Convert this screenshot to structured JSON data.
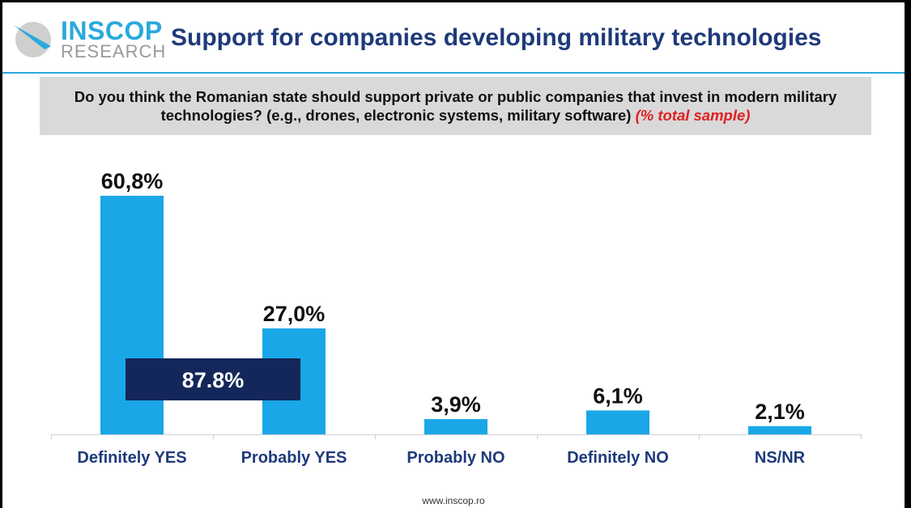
{
  "header": {
    "logo_name": "INSCOP",
    "logo_sub": "RESEARCH",
    "title": "Support for companies developing military technologies"
  },
  "question": {
    "text": "Do you think the Romanian state should support private or public companies that invest in modern military technologies? (e.g., drones, electronic systems, military software)",
    "note": "(% total sample)"
  },
  "chart_data": {
    "type": "bar",
    "categories": [
      "Definitely YES",
      "Probably YES",
      "Probably NO",
      "Definitely NO",
      "NS/NR"
    ],
    "values": [
      60.8,
      27.0,
      3.9,
      6.1,
      2.1
    ],
    "value_labels": [
      "60,8%",
      "27,0%",
      "3,9%",
      "6,1%",
      "2,1%"
    ],
    "annotation": "87.8%",
    "ylim": [
      0,
      60.8
    ],
    "colors": {
      "bar": "#1aa7e8",
      "annotation_bg": "#13275a",
      "annotation_text": "#ffffff"
    }
  },
  "footer": {
    "url": "www.inscop.ro"
  },
  "colors": {
    "title": "#1f3a7a",
    "accent": "#2aa9dc",
    "question_bg": "#d9d9d9",
    "note": "#e02020"
  }
}
